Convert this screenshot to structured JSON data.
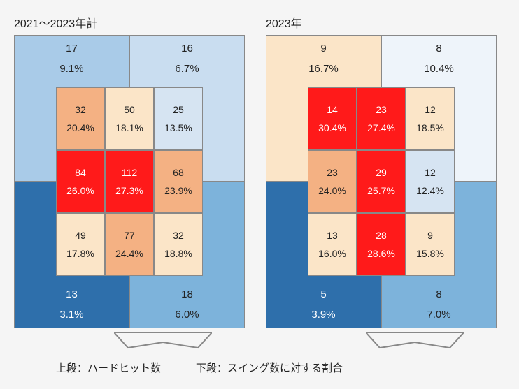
{
  "charts": [
    {
      "title": "2021～2023年計",
      "outer": {
        "tl": {
          "count": "17",
          "pct": "9.1%",
          "bg": "#a9cbe8",
          "txt": "dark"
        },
        "tr": {
          "count": "16",
          "pct": "6.7%",
          "bg": "#c9ddf0",
          "txt": "dark"
        },
        "bl": {
          "count": "13",
          "pct": "3.1%",
          "bg": "#2e6fab",
          "txt": "light"
        },
        "br": {
          "count": "18",
          "pct": "6.0%",
          "bg": "#7db3db",
          "txt": "dark"
        }
      },
      "inner": [
        {
          "count": "32",
          "pct": "20.4%",
          "bg": "#f4b183",
          "txt": "dark"
        },
        {
          "count": "50",
          "pct": "18.1%",
          "bg": "#fbe5c8",
          "txt": "dark"
        },
        {
          "count": "25",
          "pct": "13.5%",
          "bg": "#d6e4f2",
          "txt": "dark"
        },
        {
          "count": "84",
          "pct": "26.0%",
          "bg": "#ff1a1a",
          "txt": "light"
        },
        {
          "count": "112",
          "pct": "27.3%",
          "bg": "#ff1a1a",
          "txt": "light"
        },
        {
          "count": "68",
          "pct": "23.9%",
          "bg": "#f4b183",
          "txt": "dark"
        },
        {
          "count": "49",
          "pct": "17.8%",
          "bg": "#fbe5c8",
          "txt": "dark"
        },
        {
          "count": "77",
          "pct": "24.4%",
          "bg": "#f4b183",
          "txt": "dark"
        },
        {
          "count": "32",
          "pct": "18.8%",
          "bg": "#fbe5c8",
          "txt": "dark"
        }
      ]
    },
    {
      "title": "2023年",
      "outer": {
        "tl": {
          "count": "9",
          "pct": "16.7%",
          "bg": "#fbe5c8",
          "txt": "dark"
        },
        "tr": {
          "count": "8",
          "pct": "10.4%",
          "bg": "#eef4fa",
          "txt": "dark"
        },
        "bl": {
          "count": "5",
          "pct": "3.9%",
          "bg": "#2e6fab",
          "txt": "light"
        },
        "br": {
          "count": "8",
          "pct": "7.0%",
          "bg": "#7db3db",
          "txt": "dark"
        }
      },
      "inner": [
        {
          "count": "14",
          "pct": "30.4%",
          "bg": "#ff1a1a",
          "txt": "light"
        },
        {
          "count": "23",
          "pct": "27.4%",
          "bg": "#ff1a1a",
          "txt": "light"
        },
        {
          "count": "12",
          "pct": "18.5%",
          "bg": "#fbe5c8",
          "txt": "dark"
        },
        {
          "count": "23",
          "pct": "24.0%",
          "bg": "#f4b183",
          "txt": "dark"
        },
        {
          "count": "29",
          "pct": "25.7%",
          "bg": "#ff1a1a",
          "txt": "light"
        },
        {
          "count": "12",
          "pct": "12.4%",
          "bg": "#d6e4f2",
          "txt": "dark"
        },
        {
          "count": "13",
          "pct": "16.0%",
          "bg": "#fbe5c8",
          "txt": "dark"
        },
        {
          "count": "28",
          "pct": "28.6%",
          "bg": "#ff1a1a",
          "txt": "light"
        },
        {
          "count": "9",
          "pct": "15.8%",
          "bg": "#fbe5c8",
          "txt": "dark"
        }
      ]
    }
  ],
  "plate": {
    "stroke": "#888888",
    "fill": "#f5f5f5"
  },
  "legend": {
    "top_label": "上段：ハードヒット数",
    "bottom_label": "下段：スイング数に対する割合"
  }
}
